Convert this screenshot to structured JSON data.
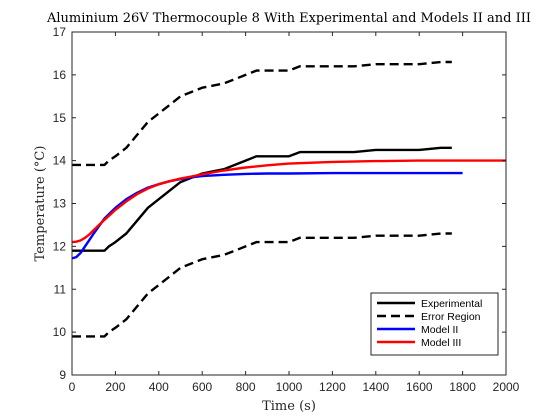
{
  "chart_data": {
    "type": "line",
    "title": "Aluminium 26V Thermocouple 8 With Experimental and Models II and III",
    "xlabel": "Time (s)",
    "ylabel": "Temperature (°C)",
    "xlim": [
      0,
      2000
    ],
    "ylim": [
      9,
      17
    ],
    "xticks": [
      "0",
      "200",
      "400",
      "600",
      "800",
      "1000",
      "1200",
      "1400",
      "1600",
      "1800",
      "2000"
    ],
    "yticks": [
      "9",
      "10",
      "11",
      "12",
      "13",
      "14",
      "15",
      "16",
      "17"
    ],
    "grid": false,
    "legend_position": "bottom-right",
    "series": [
      {
        "name": "Experimental",
        "color": "#000000",
        "style": "solid",
        "x": [
          0,
          150,
          170,
          200,
          250,
          300,
          350,
          400,
          450,
          500,
          550,
          600,
          650,
          700,
          750,
          800,
          850,
          900,
          950,
          1000,
          1050,
          1100,
          1200,
          1300,
          1400,
          1500,
          1600,
          1700,
          1750
        ],
        "y": [
          11.9,
          11.9,
          12.0,
          12.1,
          12.3,
          12.6,
          12.9,
          13.1,
          13.3,
          13.5,
          13.6,
          13.7,
          13.75,
          13.8,
          13.9,
          14.0,
          14.1,
          14.1,
          14.1,
          14.1,
          14.2,
          14.2,
          14.2,
          14.2,
          14.25,
          14.25,
          14.25,
          14.3,
          14.3
        ]
      },
      {
        "name": "Error Region",
        "color": "#000000",
        "style": "dashed",
        "x": [
          0,
          150,
          170,
          200,
          250,
          300,
          350,
          400,
          450,
          500,
          550,
          600,
          650,
          700,
          750,
          800,
          850,
          900,
          950,
          1000,
          1050,
          1100,
          1200,
          1300,
          1400,
          1500,
          1600,
          1700,
          1750
        ],
        "y": [
          13.9,
          13.9,
          14.0,
          14.1,
          14.3,
          14.6,
          14.9,
          15.1,
          15.3,
          15.5,
          15.6,
          15.7,
          15.75,
          15.8,
          15.9,
          16.0,
          16.1,
          16.1,
          16.1,
          16.1,
          16.2,
          16.2,
          16.2,
          16.2,
          16.25,
          16.25,
          16.25,
          16.3,
          16.3
        ]
      },
      {
        "name": "",
        "color": "#000000",
        "style": "dashed",
        "x": [
          0,
          150,
          170,
          200,
          250,
          300,
          350,
          400,
          450,
          500,
          550,
          600,
          650,
          700,
          750,
          800,
          850,
          900,
          950,
          1000,
          1050,
          1100,
          1200,
          1300,
          1400,
          1500,
          1600,
          1700,
          1750
        ],
        "y": [
          9.9,
          9.9,
          10.0,
          10.1,
          10.3,
          10.6,
          10.9,
          11.1,
          11.3,
          11.5,
          11.6,
          11.7,
          11.75,
          11.8,
          11.9,
          12.0,
          12.1,
          12.1,
          12.1,
          12.1,
          12.2,
          12.2,
          12.2,
          12.2,
          12.25,
          12.25,
          12.25,
          12.3,
          12.3
        ]
      },
      {
        "name": "Model II",
        "color": "#0000ff",
        "style": "solid",
        "x": [
          0,
          20,
          40,
          60,
          80,
          100,
          150,
          200,
          250,
          300,
          350,
          400,
          450,
          500,
          550,
          600,
          700,
          800,
          900,
          1000,
          1200,
          1400,
          1600,
          1800
        ],
        "y": [
          11.72,
          11.75,
          11.85,
          12.0,
          12.15,
          12.3,
          12.65,
          12.9,
          13.1,
          13.25,
          13.37,
          13.45,
          13.52,
          13.57,
          13.61,
          13.64,
          13.67,
          13.69,
          13.7,
          13.7,
          13.71,
          13.71,
          13.71,
          13.71
        ]
      },
      {
        "name": "Model III",
        "color": "#ff0000",
        "style": "solid",
        "x": [
          0,
          20,
          40,
          60,
          80,
          100,
          150,
          200,
          250,
          300,
          350,
          400,
          450,
          500,
          550,
          600,
          700,
          800,
          900,
          1000,
          1200,
          1400,
          1600,
          1800,
          2000
        ],
        "y": [
          12.1,
          12.11,
          12.14,
          12.2,
          12.28,
          12.38,
          12.62,
          12.85,
          13.05,
          13.22,
          13.35,
          13.45,
          13.52,
          13.58,
          13.63,
          13.68,
          13.77,
          13.84,
          13.89,
          13.93,
          13.97,
          13.99,
          14.0,
          14.0,
          14.0
        ]
      }
    ]
  }
}
